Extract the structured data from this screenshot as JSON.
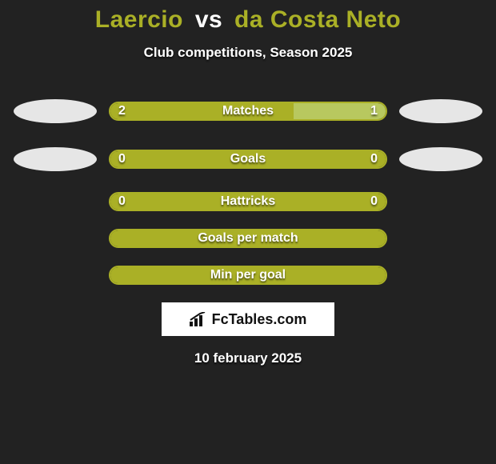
{
  "title": {
    "player1": "Laercio",
    "vs": "vs",
    "player2": "da Costa Neto",
    "player1_color": "#aab026",
    "player2_color": "#aab026",
    "vs_color": "#ffffff"
  },
  "subtitle": "Club competitions, Season 2025",
  "background_color": "#222222",
  "jersey": {
    "left_color": "#e6e6e6",
    "right_color": "#e6e6e6"
  },
  "bar_colors": {
    "left_fill": "#aab026",
    "right_fill": "#b8c85f",
    "empty_fill": "#aab026",
    "border": "#aab026"
  },
  "rows": [
    {
      "label": "Matches",
      "left_value": "2",
      "right_value": "1",
      "left_pct": 66.7,
      "right_pct": 33.3,
      "show_jerseys": true,
      "left_fill": "#aab026",
      "right_fill": "#b8c85f"
    },
    {
      "label": "Goals",
      "left_value": "0",
      "right_value": "0",
      "left_pct": 50,
      "right_pct": 50,
      "show_jerseys": true,
      "left_fill": "#aab026",
      "right_fill": "#aab026"
    },
    {
      "label": "Hattricks",
      "left_value": "0",
      "right_value": "0",
      "left_pct": 50,
      "right_pct": 50,
      "show_jerseys": false,
      "left_fill": "#aab026",
      "right_fill": "#aab026"
    },
    {
      "label": "Goals per match",
      "left_value": "",
      "right_value": "",
      "left_pct": 50,
      "right_pct": 50,
      "show_jerseys": false,
      "left_fill": "#aab026",
      "right_fill": "#aab026"
    },
    {
      "label": "Min per goal",
      "left_value": "",
      "right_value": "",
      "left_pct": 50,
      "right_pct": 50,
      "show_jerseys": false,
      "left_fill": "#aab026",
      "right_fill": "#aab026"
    }
  ],
  "logo_text": "FcTables.com",
  "footer_date": "10 february 2025"
}
